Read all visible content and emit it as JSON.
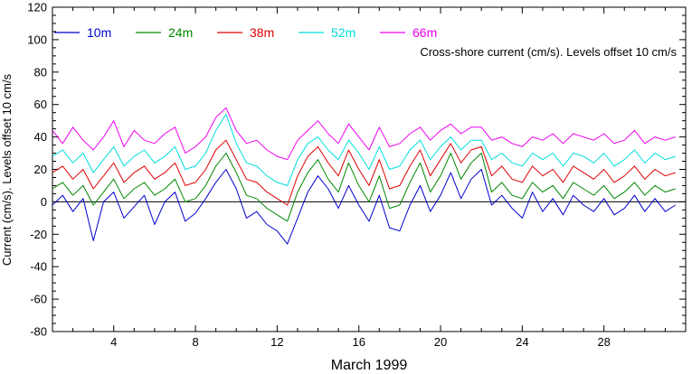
{
  "chart_data": {
    "type": "line",
    "title": "",
    "annotation": "Cross-shore current (cm/s). Levels offset 10 cm/s",
    "xlabel": "March 1999",
    "ylabel": "Current (cm/s). Levels offset 10 cm/s",
    "xlim": [
      1,
      32
    ],
    "ylim": [
      -80,
      120
    ],
    "xticks": [
      4,
      8,
      12,
      16,
      20,
      24,
      28
    ],
    "yticks": [
      -80,
      -60,
      -40,
      -20,
      0,
      20,
      40,
      60,
      80,
      100,
      120
    ],
    "zero_line": true,
    "grid": false,
    "legend_position": "top-left",
    "series": [
      {
        "name": "10m",
        "color": "#0000cc",
        "x": [
          1.0,
          1.5,
          2.0,
          2.5,
          3.0,
          3.5,
          4.0,
          4.5,
          5.0,
          5.5,
          6.0,
          6.5,
          7.0,
          7.5,
          8.0,
          8.5,
          9.0,
          9.5,
          10.0,
          10.5,
          11.0,
          11.5,
          12.0,
          12.5,
          13.0,
          13.5,
          14.0,
          14.5,
          15.0,
          15.5,
          16.0,
          16.5,
          17.0,
          17.5,
          18.0,
          18.5,
          19.0,
          19.5,
          20.0,
          20.5,
          21.0,
          21.5,
          22.0,
          22.5,
          23.0,
          23.5,
          24.0,
          24.5,
          25.0,
          25.5,
          26.0,
          26.5,
          27.0,
          27.5,
          28.0,
          28.5,
          29.0,
          29.5,
          30.0,
          30.5,
          31.0,
          31.5
        ],
        "y": [
          -2,
          4,
          -6,
          2,
          -24,
          0,
          6,
          -10,
          -3,
          4,
          -14,
          0,
          6,
          -12,
          -7,
          2,
          12,
          20,
          8,
          -10,
          -6,
          -14,
          -18,
          -26,
          -10,
          6,
          16,
          8,
          -4,
          10,
          -2,
          -12,
          4,
          -16,
          -18,
          -2,
          10,
          -6,
          4,
          18,
          2,
          14,
          20,
          -2,
          4,
          -4,
          -10,
          6,
          -6,
          2,
          -8,
          4,
          -2,
          -6,
          2,
          -8,
          -4,
          4,
          -6,
          2,
          -6,
          -2
        ]
      },
      {
        "name": "24m",
        "color": "#008800",
        "x": [
          1.0,
          1.5,
          2.0,
          2.5,
          3.0,
          3.5,
          4.0,
          4.5,
          5.0,
          5.5,
          6.0,
          6.5,
          7.0,
          7.5,
          8.0,
          8.5,
          9.0,
          9.5,
          10.0,
          10.5,
          11.0,
          11.5,
          12.0,
          12.5,
          13.0,
          13.5,
          14.0,
          14.5,
          15.0,
          15.5,
          16.0,
          16.5,
          17.0,
          17.5,
          18.0,
          18.5,
          19.0,
          19.5,
          20.0,
          20.5,
          21.0,
          21.5,
          22.0,
          22.5,
          23.0,
          23.5,
          24.0,
          24.5,
          25.0,
          25.5,
          26.0,
          26.5,
          27.0,
          27.5,
          28.0,
          28.5,
          29.0,
          29.5,
          30.0,
          30.5,
          31.0,
          31.5
        ],
        "y": [
          8,
          12,
          4,
          10,
          -2,
          6,
          14,
          2,
          8,
          12,
          4,
          8,
          14,
          0,
          2,
          10,
          22,
          30,
          18,
          4,
          2,
          -4,
          -8,
          -12,
          6,
          18,
          26,
          14,
          6,
          24,
          10,
          0,
          16,
          -4,
          -2,
          12,
          24,
          6,
          16,
          30,
          14,
          24,
          30,
          6,
          12,
          4,
          2,
          12,
          6,
          10,
          2,
          12,
          8,
          4,
          10,
          2,
          6,
          12,
          4,
          10,
          6,
          8
        ]
      },
      {
        "name": "38m",
        "color": "#dd0000",
        "x": [
          1.0,
          1.5,
          2.0,
          2.5,
          3.0,
          3.5,
          4.0,
          4.5,
          5.0,
          5.5,
          6.0,
          6.5,
          7.0,
          7.5,
          8.0,
          8.5,
          9.0,
          9.5,
          10.0,
          10.5,
          11.0,
          11.5,
          12.0,
          12.5,
          13.0,
          13.5,
          14.0,
          14.5,
          15.0,
          15.5,
          16.0,
          16.5,
          17.0,
          17.5,
          18.0,
          18.5,
          19.0,
          19.5,
          20.0,
          20.5,
          21.0,
          21.5,
          22.0,
          22.5,
          23.0,
          23.5,
          24.0,
          24.5,
          25.0,
          25.5,
          26.0,
          26.5,
          27.0,
          27.5,
          28.0,
          28.5,
          29.0,
          29.5,
          30.0,
          30.5,
          31.0,
          31.5
        ],
        "y": [
          18,
          22,
          14,
          20,
          8,
          16,
          24,
          12,
          18,
          22,
          14,
          18,
          24,
          10,
          12,
          20,
          32,
          38,
          26,
          14,
          12,
          6,
          2,
          -2,
          16,
          28,
          34,
          24,
          16,
          32,
          20,
          10,
          26,
          8,
          10,
          22,
          32,
          16,
          26,
          36,
          24,
          32,
          34,
          16,
          22,
          14,
          12,
          22,
          16,
          20,
          12,
          22,
          18,
          14,
          20,
          12,
          16,
          22,
          14,
          20,
          16,
          18
        ]
      },
      {
        "name": "52m",
        "color": "#00dddd",
        "x": [
          1.0,
          1.5,
          2.0,
          2.5,
          3.0,
          3.5,
          4.0,
          4.5,
          5.0,
          5.5,
          6.0,
          6.5,
          7.0,
          7.5,
          8.0,
          8.5,
          9.0,
          9.5,
          10.0,
          10.5,
          11.0,
          11.5,
          12.0,
          12.5,
          13.0,
          13.5,
          14.0,
          14.5,
          15.0,
          15.5,
          16.0,
          16.5,
          17.0,
          17.5,
          18.0,
          18.5,
          19.0,
          19.5,
          20.0,
          20.5,
          21.0,
          21.5,
          22.0,
          22.5,
          23.0,
          23.5,
          24.0,
          24.5,
          25.0,
          25.5,
          26.0,
          26.5,
          27.0,
          27.5,
          28.0,
          28.5,
          29.0,
          29.5,
          30.0,
          30.5,
          31.0,
          31.5
        ],
        "y": [
          28,
          32,
          24,
          30,
          18,
          26,
          34,
          22,
          28,
          32,
          24,
          28,
          34,
          20,
          22,
          30,
          44,
          54,
          36,
          24,
          22,
          16,
          12,
          10,
          26,
          36,
          40,
          32,
          26,
          38,
          30,
          20,
          34,
          20,
          22,
          32,
          38,
          26,
          34,
          40,
          32,
          38,
          38,
          26,
          30,
          24,
          22,
          30,
          26,
          30,
          22,
          30,
          28,
          24,
          30,
          22,
          26,
          32,
          24,
          30,
          26,
          28
        ]
      },
      {
        "name": "66m",
        "color": "#ee00ee",
        "x": [
          1.0,
          1.5,
          2.0,
          2.5,
          3.0,
          3.5,
          4.0,
          4.5,
          5.0,
          5.5,
          6.0,
          6.5,
          7.0,
          7.5,
          8.0,
          8.5,
          9.0,
          9.5,
          10.0,
          10.5,
          11.0,
          11.5,
          12.0,
          12.5,
          13.0,
          13.5,
          14.0,
          14.5,
          15.0,
          15.5,
          16.0,
          16.5,
          17.0,
          17.5,
          18.0,
          18.5,
          19.0,
          19.5,
          20.0,
          20.5,
          21.0,
          21.5,
          22.0,
          22.5,
          23.0,
          23.5,
          24.0,
          24.5,
          25.0,
          25.5,
          26.0,
          26.5,
          27.0,
          27.5,
          28.0,
          28.5,
          29.0,
          29.5,
          30.0,
          30.5,
          31.0,
          31.5
        ],
        "y": [
          44,
          36,
          46,
          38,
          32,
          40,
          50,
          34,
          44,
          38,
          36,
          42,
          46,
          30,
          34,
          40,
          52,
          58,
          44,
          36,
          38,
          32,
          28,
          26,
          38,
          44,
          50,
          42,
          36,
          48,
          40,
          32,
          46,
          34,
          36,
          42,
          46,
          38,
          44,
          48,
          42,
          46,
          46,
          38,
          40,
          36,
          34,
          40,
          38,
          42,
          36,
          42,
          40,
          38,
          42,
          36,
          38,
          44,
          36,
          40,
          38,
          40
        ]
      }
    ]
  }
}
